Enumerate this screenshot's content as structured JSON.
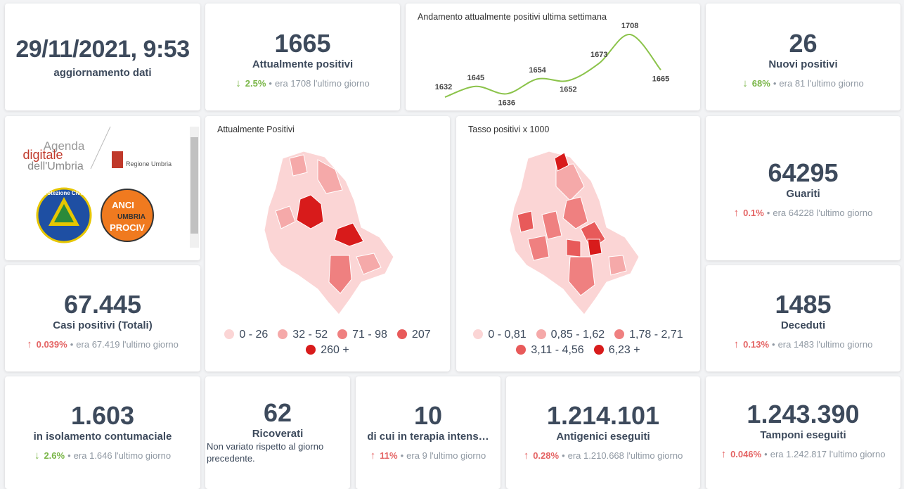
{
  "update": {
    "datetime": "29/11/2021, 9:53",
    "label": "aggiornamento dati"
  },
  "sparkline": {
    "type": "line",
    "title": "Andamento attualmente positivi ultima settimana",
    "values": [
      1632,
      1645,
      1636,
      1654,
      1652,
      1673,
      1708,
      1665
    ],
    "color": "#8bc34a"
  },
  "logos": {
    "agenda": [
      "Agenda",
      "digitale",
      "dell'Umbria"
    ],
    "regione": "Regione Umbria",
    "protezione": "Protezione Civile",
    "anci": [
      "ANCI",
      "UMBRIA",
      "PROCIV"
    ]
  },
  "maps": [
    {
      "title": "Attualmente Positivi",
      "legend": [
        {
          "label": "0 - 26",
          "color": "#fbd5d5"
        },
        {
          "label": "32 - 52",
          "color": "#f5a9a9"
        },
        {
          "label": "71 - 98",
          "color": "#ef8080"
        },
        {
          "label": "207",
          "color": "#e85a5a"
        },
        {
          "label": "260 +",
          "color": "#d81b1b"
        }
      ]
    },
    {
      "title": "Tasso positivi x 1000",
      "legend": [
        {
          "label": "0 - 0,81",
          "color": "#fbd5d5"
        },
        {
          "label": "0,85 - 1,62",
          "color": "#f5a9a9"
        },
        {
          "label": "1,78 - 2,71",
          "color": "#ef8080"
        },
        {
          "label": "3,11 - 4,56",
          "color": "#e85a5a"
        },
        {
          "label": "6,23 +",
          "color": "#d81b1b"
        }
      ]
    }
  ],
  "cards": [
    {
      "value": "1665",
      "label": "Attualmente positivi",
      "trend": "down",
      "change": "2.5%",
      "previous_prefix": "era",
      "previous": "1708",
      "previous_suffix": "l'ultimo giorno"
    },
    {
      "value": "26",
      "label": "Nuovi positivi",
      "trend": "down",
      "change": "68%",
      "previous_prefix": "era",
      "previous": "81",
      "previous_suffix": "l'ultimo giorno"
    },
    {
      "value": "64295",
      "label": "Guariti",
      "trend": "up",
      "change": "0.1%",
      "previous_prefix": "era",
      "previous": "64228",
      "previous_suffix": "l'ultimo giorno"
    },
    {
      "value": "67.445",
      "label": "Casi positivi (Totali)",
      "trend": "up",
      "change": "0.039%",
      "previous_prefix": "era",
      "previous": "67.419",
      "previous_suffix": "l'ultimo giorno"
    },
    {
      "value": "1485",
      "label": "Deceduti",
      "trend": "up",
      "change": "0.13%",
      "previous_prefix": "era",
      "previous": "1483",
      "previous_suffix": "l'ultimo giorno"
    },
    {
      "value": "1.603",
      "label": "in isolamento contumaciale",
      "trend": "down",
      "change": "2.6%",
      "previous_prefix": "era",
      "previous": "1.646",
      "previous_suffix": "l'ultimo giorno"
    },
    {
      "value": "62",
      "label": "Ricoverati",
      "note": "Non variato rispetto al giorno precedente."
    },
    {
      "value": "10",
      "label": "di cui in terapia intens…",
      "trend": "up",
      "change": "11%",
      "previous_prefix": "era",
      "previous": "9",
      "previous_suffix": "l'ultimo giorno"
    },
    {
      "value": "1.214.101",
      "label": "Antigenici eseguiti",
      "trend": "up",
      "change": "0.28%",
      "previous_prefix": "era",
      "previous": "1.210.668",
      "previous_suffix": "l'ultimo giorno"
    },
    {
      "value": "1.243.390",
      "label": "Tamponi eseguiti",
      "trend": "up",
      "change": "0.046%",
      "previous_prefix": "era",
      "previous": "1.242.817",
      "previous_suffix": "l'ultimo giorno"
    }
  ]
}
